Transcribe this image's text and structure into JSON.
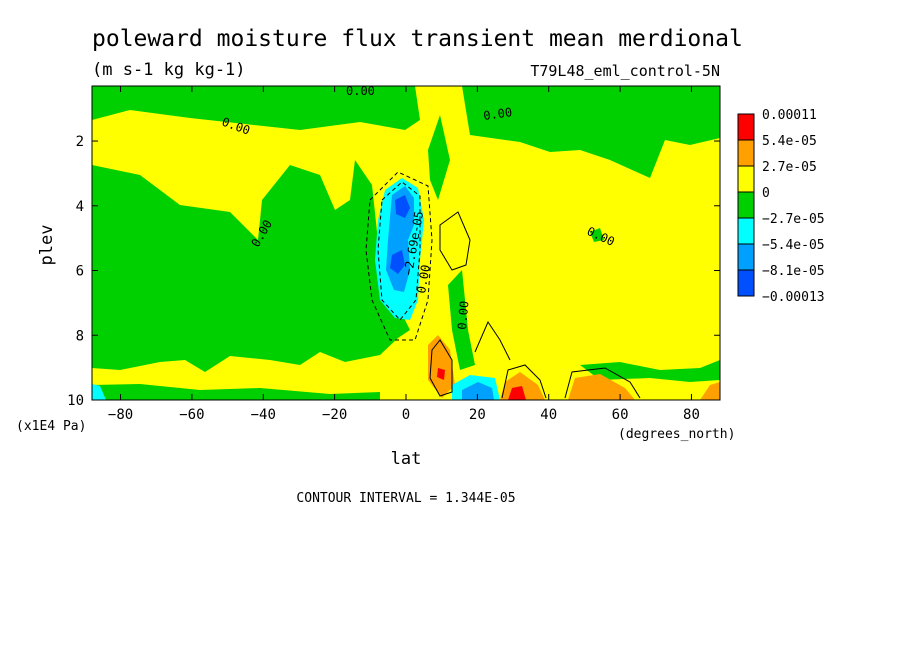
{
  "chart_data": {
    "type": "heatmap",
    "title": "poleward moisture flux transient mean merdional",
    "units": "(m s-1 kg kg-1)",
    "dataset": "T79L48_eml_control-5N",
    "xlabel": "lat",
    "xunits": "(degrees_north)",
    "ylabel": "plev",
    "yunits": "(x1E4 Pa)",
    "xlim": [
      -88,
      88
    ],
    "ylim": [
      10,
      0.3
    ],
    "xticks": [
      -80,
      -60,
      -40,
      -20,
      0,
      20,
      40,
      60,
      80
    ],
    "yticks": [
      2,
      4,
      6,
      8,
      10
    ],
    "contour_interval_text": "CONTOUR INTERVAL = 1.344E-05",
    "legend": {
      "placement": "right",
      "labels": [
        "0.00011",
        "5.4e-05",
        "2.7e-05",
        "0",
        "−2.7e-05",
        "−5.4e-05",
        "−8.1e-05",
        "−0.00013"
      ],
      "colors": [
        "#ff0000",
        "#ff9f00",
        "#ffff00",
        "#00d000",
        "#00ffff",
        "#00a0ff",
        "#0050ff"
      ]
    },
    "contour_labels": [
      "0.00",
      "0.00",
      "0.00",
      "0.00",
      "0.00",
      "0.00",
      "0.00",
      "−2.69e-05"
    ]
  }
}
